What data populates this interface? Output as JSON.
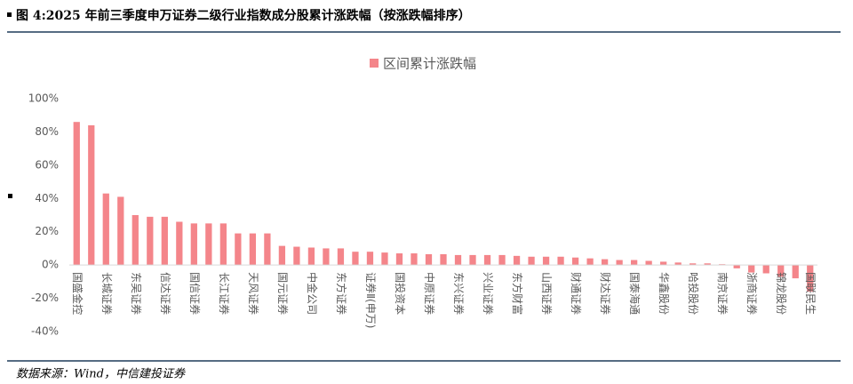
{
  "chart_data": {
    "type": "bar",
    "title": "图 4:2025 年前三季度申万证券二级行业指数成分股累计涨跌幅（按涨跌幅排序）",
    "source": "数据来源：Wind，中信建投证券",
    "legend": "区间累计涨跌幅",
    "color": "#f4858a",
    "categories": [
      "国盛金控",
      null,
      "长城证券",
      null,
      "东吴证券",
      null,
      "信达证券",
      null,
      "国信证券",
      null,
      "长江证券",
      null,
      "天风证券",
      null,
      "国元证券",
      null,
      "中金公司",
      null,
      "东方证券",
      null,
      "证券Ⅱ(申万)",
      null,
      "国投资本",
      null,
      "中原证券",
      null,
      "东兴证券",
      null,
      "兴业证券",
      null,
      "东方财富",
      null,
      "山西证券",
      null,
      "财通证券",
      null,
      "财达证券",
      null,
      "国泰海通",
      null,
      "华鑫股份",
      null,
      "哈投股份",
      null,
      "南京证券",
      null,
      "浙商证券",
      null,
      "锦龙股份",
      null,
      "国联民生"
    ],
    "values": [
      86,
      84,
      43,
      41,
      30,
      29,
      29,
      26,
      25,
      25,
      25,
      19,
      19,
      19,
      11.5,
      11,
      10.5,
      10,
      10,
      8,
      8,
      7.5,
      7,
      7,
      6.5,
      6.5,
      6,
      6,
      6,
      6,
      5.5,
      5,
      5,
      5,
      4.5,
      4,
      3.5,
      3,
      3,
      2.5,
      2,
      1.5,
      1,
      1,
      0.5,
      -2,
      -4.5,
      -5,
      -7,
      -8,
      -16
    ],
    "ylim": [
      -40,
      100
    ],
    "yticks": [
      {
        "value": -40,
        "label": "-40%"
      },
      {
        "value": -20,
        "label": "-20%"
      },
      {
        "value": 0,
        "label": "0%"
      },
      {
        "value": 20,
        "label": "20%"
      },
      {
        "value": 40,
        "label": "40%"
      },
      {
        "value": 60,
        "label": "60%"
      },
      {
        "value": 80,
        "label": "80%"
      },
      {
        "value": 100,
        "label": "100%"
      }
    ]
  }
}
